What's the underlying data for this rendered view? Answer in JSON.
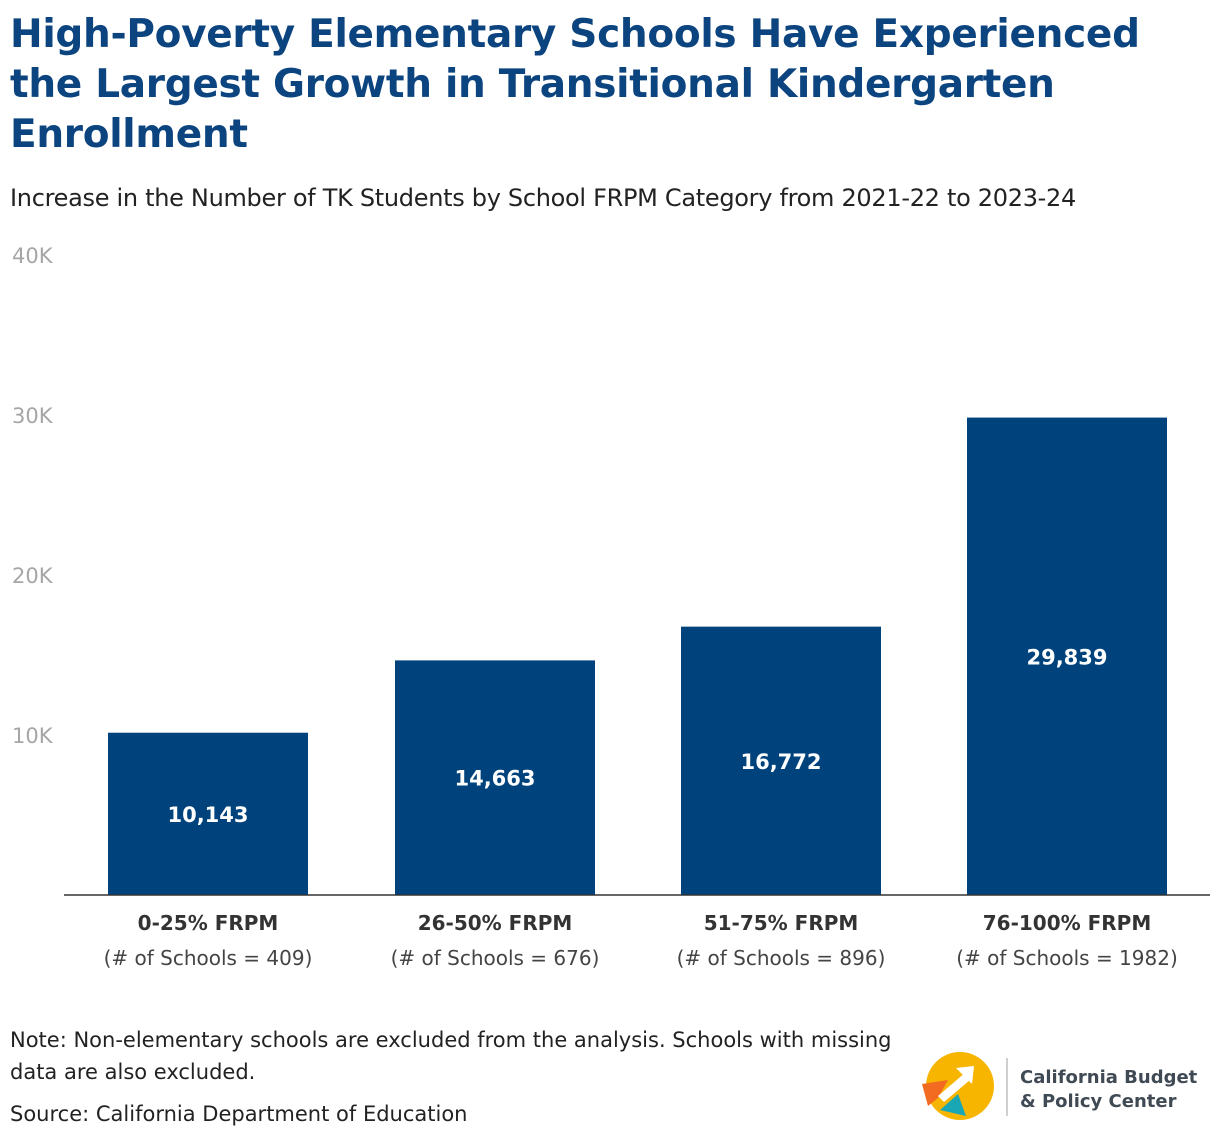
{
  "title": "High-Poverty Elementary Schools Have Experienced the Largest Growth in Transitional Kindergarten Enrollment",
  "subtitle": "Increase in the Number of TK Students by School FRPM Category from 2021-22 to 2023-24",
  "chart_data": {
    "type": "bar",
    "categories": [
      "0-25% FRPM",
      "26-50% FRPM",
      "51-75% FRPM",
      "76-100% FRPM"
    ],
    "category_sublabels": [
      "(# of Schools = 409)",
      "(# of Schools = 676)",
      "(# of Schools = 896)",
      "(# of Schools = 1982)"
    ],
    "values": [
      10143,
      14663,
      16772,
      29839
    ],
    "value_labels": [
      "10,143",
      "14,663",
      "16,772",
      "29,839"
    ],
    "y_ticks": [
      10000,
      20000,
      30000,
      40000
    ],
    "y_tick_labels": [
      "10K",
      "20K",
      "30K",
      "40K"
    ],
    "ylim": [
      0,
      40000
    ],
    "grid": false,
    "bar_color": "#00437c"
  },
  "note": "Note: Non-elementary schools are excluded from the analysis. Schools with missing data are also excluded.",
  "source": "Source: California Department of Education",
  "logo": {
    "line1": "California Budget",
    "line2": "& Policy Center"
  },
  "colors": {
    "title": "#0c447f",
    "logo_yellow": "#f7b500",
    "logo_orange": "#f26b21",
    "logo_teal": "#1aa7b5"
  }
}
